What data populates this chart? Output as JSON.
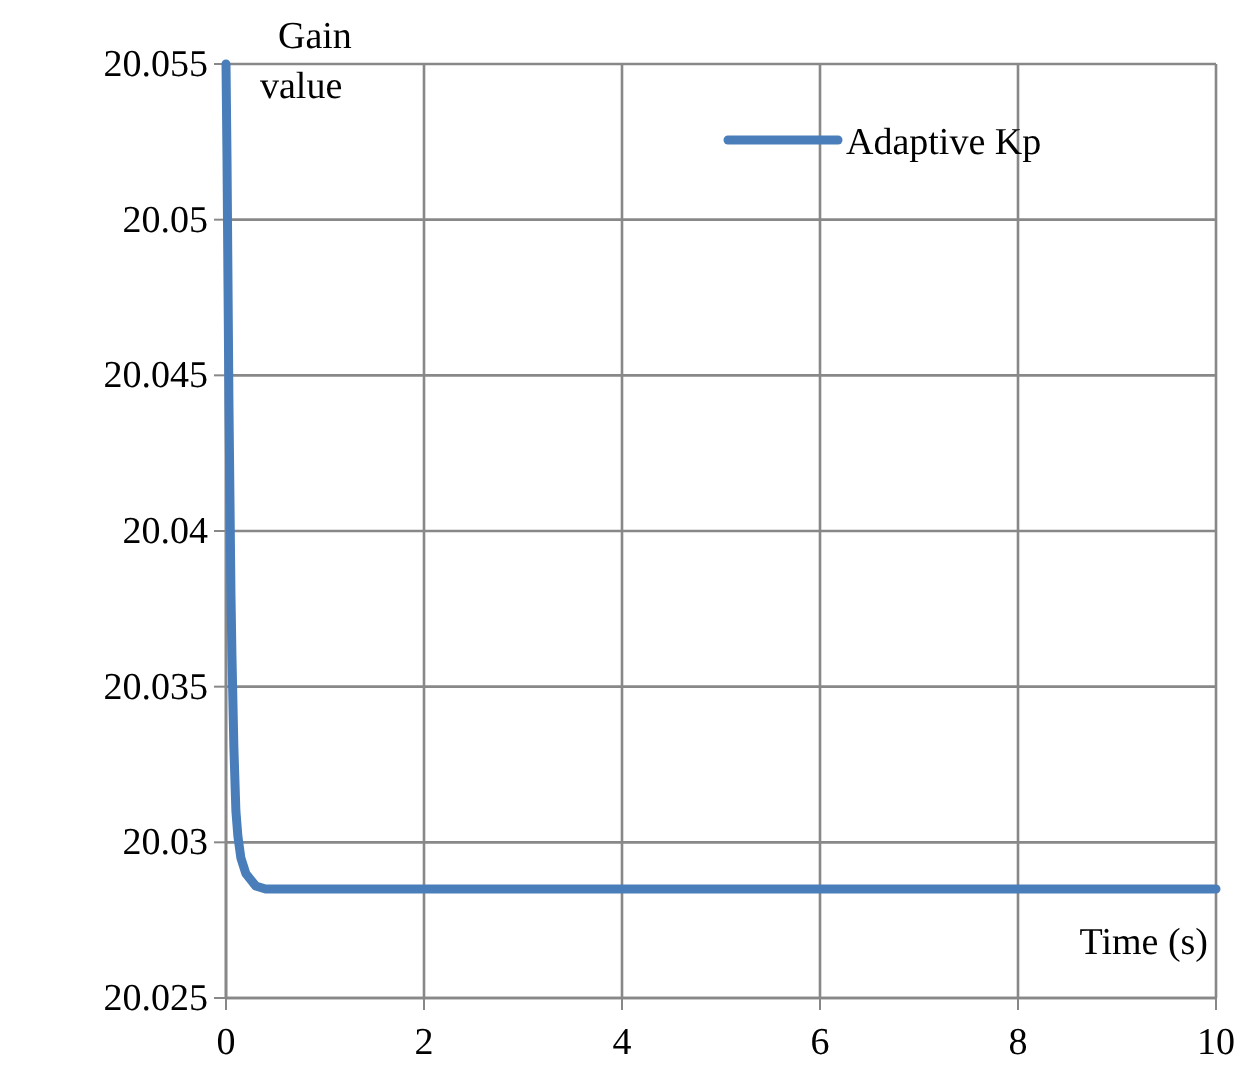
{
  "chart_data": {
    "type": "line",
    "xlabel": "Time (s)",
    "ylabel": "Gain value",
    "x": [
      0,
      0.01,
      0.02,
      0.03,
      0.04,
      0.05,
      0.06,
      0.08,
      0.1,
      0.12,
      0.15,
      0.2,
      0.25,
      0.3,
      0.4,
      0.5,
      0.7,
      1,
      2,
      4,
      6,
      8,
      10
    ],
    "series": [
      {
        "name": "Adaptive Kp",
        "color": "#4a7ebb",
        "values": [
          20.055,
          20.052,
          20.048,
          20.044,
          20.041,
          20.038,
          20.036,
          20.033,
          20.031,
          20.0302,
          20.0295,
          20.029,
          20.0288,
          20.0286,
          20.0285,
          20.0285,
          20.0285,
          20.0285,
          20.0285,
          20.0285,
          20.0285,
          20.0285,
          20.0285
        ]
      }
    ],
    "xlim": [
      0,
      10
    ],
    "xticks": [
      0,
      2,
      4,
      6,
      8,
      10
    ],
    "ylim": [
      20.025,
      20.055
    ],
    "yticks": [
      20.025,
      20.03,
      20.035,
      20.04,
      20.045,
      20.05,
      20.055
    ],
    "grid": true,
    "legend": "top right",
    "marker": "none",
    "line_style": "solid"
  }
}
